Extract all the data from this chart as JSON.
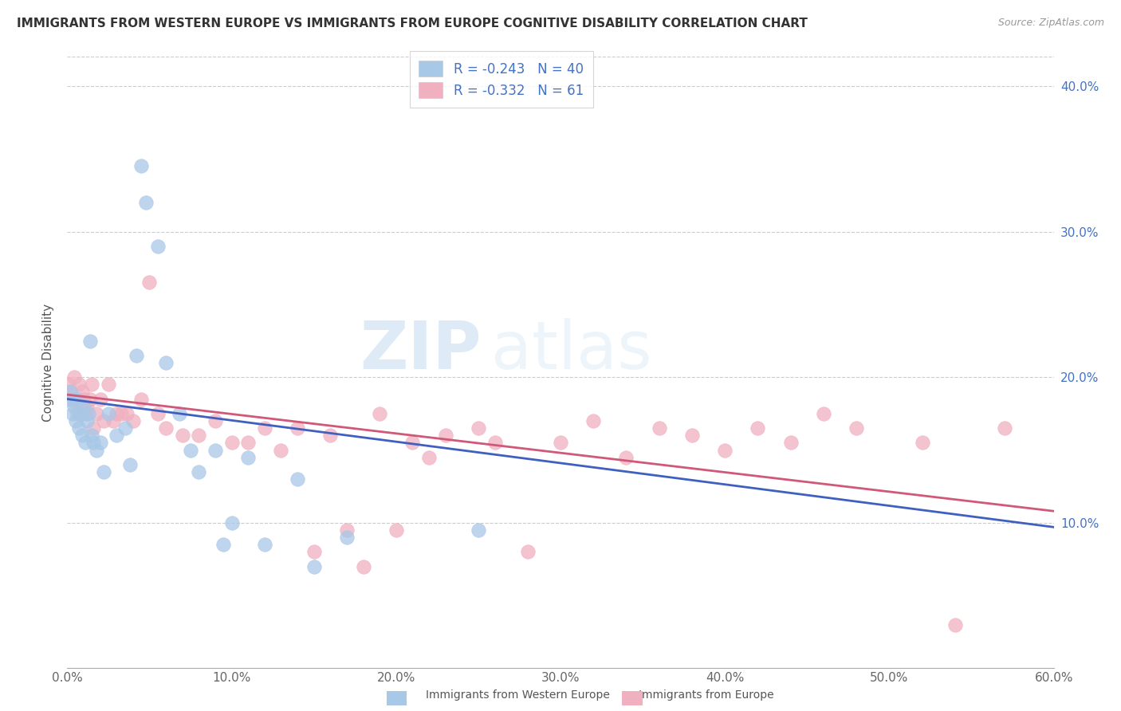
{
  "title": "IMMIGRANTS FROM WESTERN EUROPE VS IMMIGRANTS FROM EUROPE COGNITIVE DISABILITY CORRELATION CHART",
  "source": "Source: ZipAtlas.com",
  "ylabel": "Cognitive Disability",
  "xlim": [
    0.0,
    0.6
  ],
  "ylim": [
    0.0,
    0.42
  ],
  "xticks": [
    0.0,
    0.1,
    0.2,
    0.3,
    0.4,
    0.5,
    0.6
  ],
  "yticks": [
    0.1,
    0.2,
    0.3,
    0.4
  ],
  "xticklabels": [
    "0.0%",
    "10.0%",
    "20.0%",
    "30.0%",
    "40.0%",
    "50.0%",
    "60.0%"
  ],
  "yticklabels_right": [
    "10.0%",
    "20.0%",
    "30.0%",
    "40.0%"
  ],
  "legend_r1": "-0.243",
  "legend_n1": "40",
  "legend_r2": "-0.332",
  "legend_n2": "61",
  "color_blue": "#a8c8e8",
  "color_pink": "#f0b0c0",
  "line_blue": "#4060c0",
  "line_pink": "#d05878",
  "watermark_zip": "ZIP",
  "watermark_atlas": "atlas",
  "background_color": "#ffffff",
  "blue_x": [
    0.001,
    0.002,
    0.003,
    0.004,
    0.005,
    0.006,
    0.007,
    0.008,
    0.009,
    0.01,
    0.011,
    0.012,
    0.013,
    0.014,
    0.015,
    0.016,
    0.018,
    0.02,
    0.022,
    0.025,
    0.03,
    0.035,
    0.038,
    0.042,
    0.045,
    0.048,
    0.055,
    0.06,
    0.068,
    0.075,
    0.08,
    0.09,
    0.095,
    0.1,
    0.11,
    0.12,
    0.14,
    0.15,
    0.17,
    0.25
  ],
  "blue_y": [
    0.185,
    0.19,
    0.175,
    0.18,
    0.17,
    0.185,
    0.165,
    0.175,
    0.16,
    0.18,
    0.155,
    0.17,
    0.175,
    0.225,
    0.16,
    0.155,
    0.15,
    0.155,
    0.135,
    0.175,
    0.16,
    0.165,
    0.14,
    0.215,
    0.345,
    0.32,
    0.29,
    0.21,
    0.175,
    0.15,
    0.135,
    0.15,
    0.085,
    0.1,
    0.145,
    0.085,
    0.13,
    0.07,
    0.09,
    0.095
  ],
  "pink_x": [
    0.001,
    0.002,
    0.003,
    0.004,
    0.005,
    0.006,
    0.007,
    0.008,
    0.009,
    0.01,
    0.011,
    0.012,
    0.014,
    0.015,
    0.016,
    0.018,
    0.02,
    0.022,
    0.025,
    0.028,
    0.03,
    0.033,
    0.036,
    0.04,
    0.045,
    0.05,
    0.055,
    0.06,
    0.07,
    0.08,
    0.09,
    0.1,
    0.11,
    0.12,
    0.13,
    0.14,
    0.15,
    0.16,
    0.17,
    0.18,
    0.19,
    0.2,
    0.21,
    0.22,
    0.23,
    0.25,
    0.26,
    0.28,
    0.3,
    0.32,
    0.34,
    0.36,
    0.38,
    0.4,
    0.42,
    0.44,
    0.46,
    0.48,
    0.52,
    0.54,
    0.57
  ],
  "pink_y": [
    0.195,
    0.19,
    0.185,
    0.2,
    0.185,
    0.175,
    0.195,
    0.18,
    0.19,
    0.185,
    0.175,
    0.18,
    0.185,
    0.195,
    0.165,
    0.175,
    0.185,
    0.17,
    0.195,
    0.17,
    0.175,
    0.175,
    0.175,
    0.17,
    0.185,
    0.265,
    0.175,
    0.165,
    0.16,
    0.16,
    0.17,
    0.155,
    0.155,
    0.165,
    0.15,
    0.165,
    0.08,
    0.16,
    0.095,
    0.07,
    0.175,
    0.095,
    0.155,
    0.145,
    0.16,
    0.165,
    0.155,
    0.08,
    0.155,
    0.17,
    0.145,
    0.165,
    0.16,
    0.15,
    0.165,
    0.155,
    0.175,
    0.165,
    0.155,
    0.03,
    0.165
  ]
}
